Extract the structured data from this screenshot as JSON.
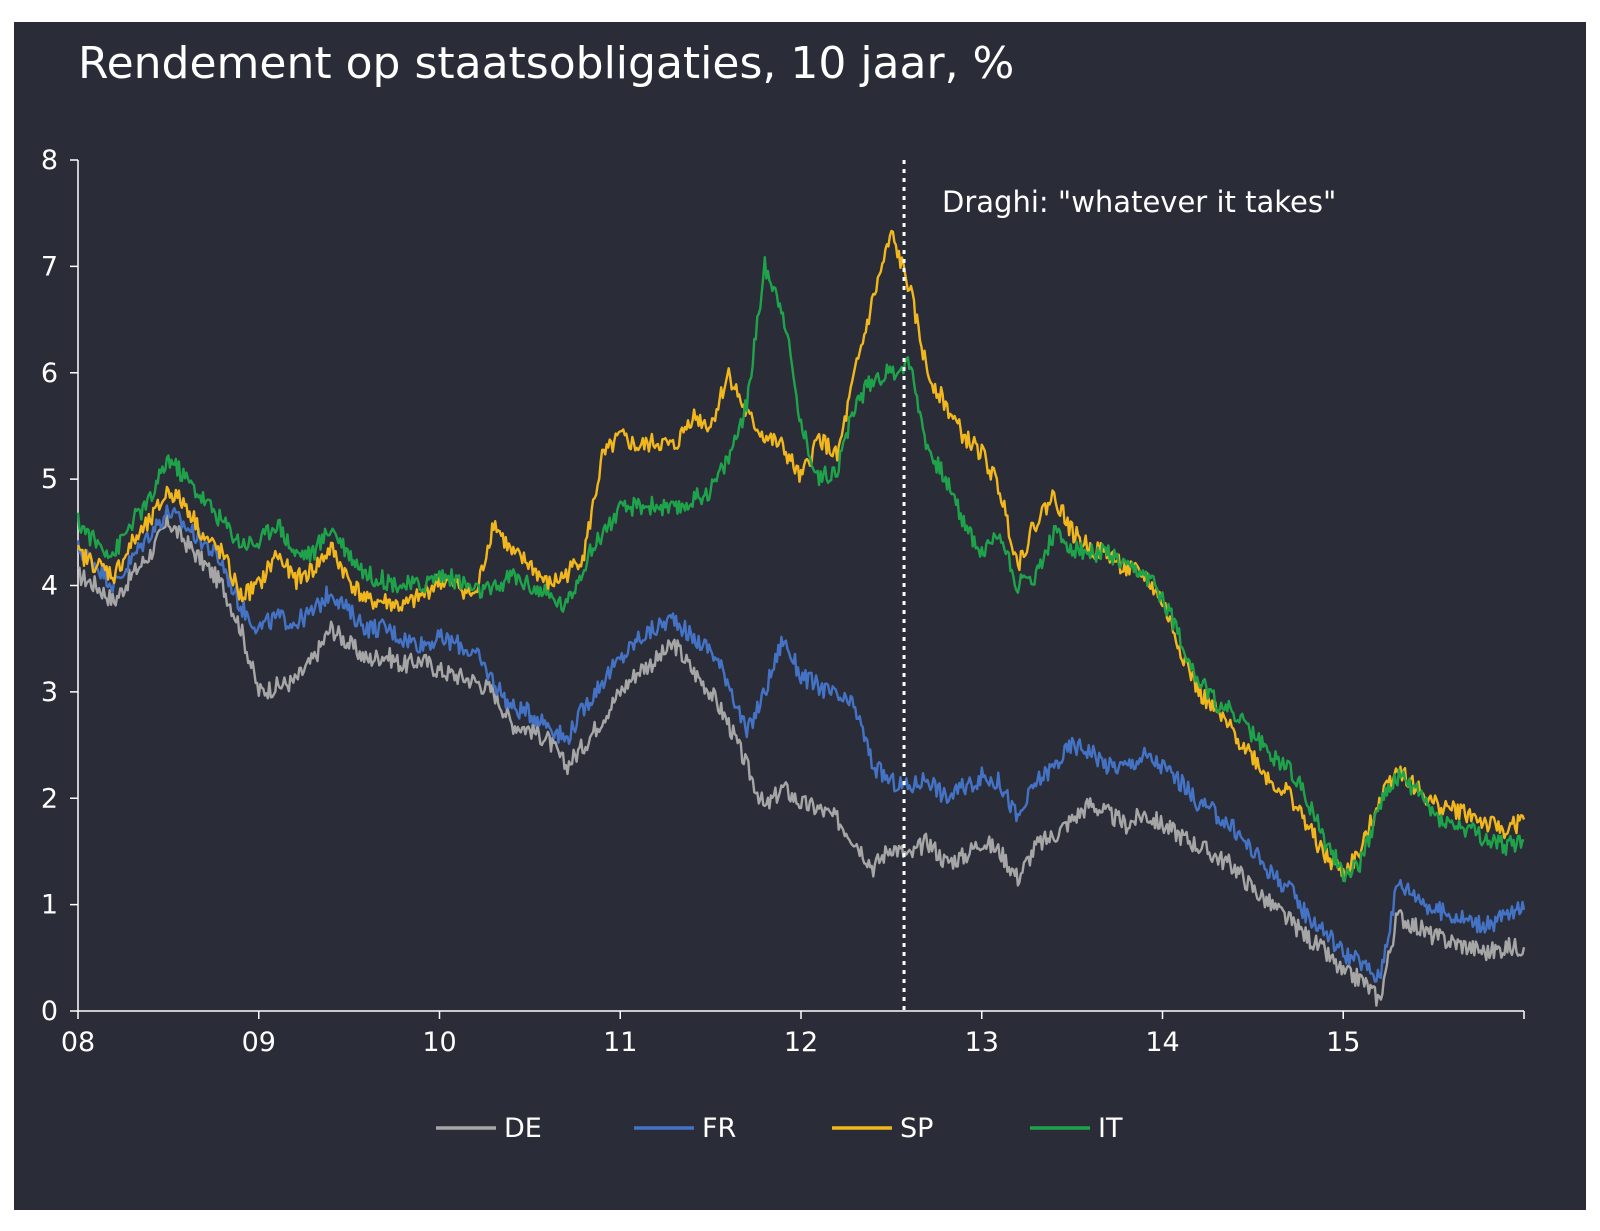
{
  "chart_data": {
    "type": "line",
    "title": "Rendement op staatsobligaties, 10 jaar, %",
    "xlabel": "",
    "ylabel": "",
    "xlim": [
      2008.0,
      2016.0
    ],
    "ylim": [
      0,
      8
    ],
    "y_ticks": [
      0,
      1,
      2,
      3,
      4,
      5,
      6,
      7,
      8
    ],
    "x_ticks": [
      {
        "value": 2008,
        "label": "08"
      },
      {
        "value": 2009,
        "label": "09"
      },
      {
        "value": 2010,
        "label": "10"
      },
      {
        "value": 2011,
        "label": "11"
      },
      {
        "value": 2012,
        "label": "12"
      },
      {
        "value": 2013,
        "label": "13"
      },
      {
        "value": 2014,
        "label": "14"
      },
      {
        "value": 2015,
        "label": "15"
      }
    ],
    "grid": false,
    "legend_position": "bottom",
    "annotation": {
      "text": "Draghi: \"whatever it takes\"",
      "x": 2012.57
    },
    "x": [
      2008.0,
      2008.1,
      2008.2,
      2008.3,
      2008.4,
      2008.5,
      2008.6,
      2008.7,
      2008.8,
      2008.9,
      2009.0,
      2009.1,
      2009.2,
      2009.3,
      2009.4,
      2009.5,
      2009.6,
      2009.7,
      2009.8,
      2009.9,
      2010.0,
      2010.1,
      2010.2,
      2010.3,
      2010.4,
      2010.5,
      2010.6,
      2010.7,
      2010.8,
      2010.9,
      2011.0,
      2011.1,
      2011.2,
      2011.3,
      2011.4,
      2011.5,
      2011.6,
      2011.7,
      2011.8,
      2011.9,
      2012.0,
      2012.1,
      2012.2,
      2012.3,
      2012.4,
      2012.5,
      2012.6,
      2012.7,
      2012.8,
      2012.9,
      2013.0,
      2013.1,
      2013.2,
      2013.3,
      2013.4,
      2013.5,
      2013.6,
      2013.7,
      2013.8,
      2013.9,
      2014.0,
      2014.1,
      2014.2,
      2014.3,
      2014.4,
      2014.5,
      2014.6,
      2014.7,
      2014.8,
      2014.9,
      2015.0,
      2015.1,
      2015.2,
      2015.3,
      2015.4,
      2015.5,
      2015.6,
      2015.7,
      2015.8,
      2015.9,
      2016.0
    ],
    "series": [
      {
        "name": "DE",
        "color": "#a6a6a6",
        "values": [
          4.1,
          4.0,
          3.85,
          4.1,
          4.3,
          4.6,
          4.4,
          4.2,
          4.0,
          3.6,
          3.0,
          3.05,
          3.1,
          3.3,
          3.6,
          3.45,
          3.3,
          3.35,
          3.25,
          3.3,
          3.2,
          3.15,
          3.1,
          3.0,
          2.7,
          2.65,
          2.55,
          2.3,
          2.5,
          2.75,
          3.0,
          3.2,
          3.3,
          3.45,
          3.2,
          3.0,
          2.7,
          2.3,
          1.9,
          2.1,
          1.95,
          1.9,
          1.8,
          1.6,
          1.35,
          1.55,
          1.45,
          1.6,
          1.4,
          1.45,
          1.6,
          1.5,
          1.25,
          1.55,
          1.65,
          1.8,
          1.95,
          1.85,
          1.75,
          1.85,
          1.75,
          1.65,
          1.55,
          1.45,
          1.35,
          1.15,
          1.0,
          0.85,
          0.7,
          0.55,
          0.35,
          0.3,
          0.1,
          0.9,
          0.8,
          0.7,
          0.65,
          0.6,
          0.55,
          0.6,
          0.6
        ]
      },
      {
        "name": "FR",
        "color": "#4472c4",
        "values": [
          4.35,
          4.2,
          4.0,
          4.25,
          4.5,
          4.7,
          4.55,
          4.4,
          4.2,
          3.8,
          3.6,
          3.7,
          3.65,
          3.75,
          3.95,
          3.75,
          3.6,
          3.6,
          3.5,
          3.45,
          3.5,
          3.45,
          3.35,
          3.1,
          2.85,
          2.8,
          2.7,
          2.55,
          2.85,
          3.1,
          3.3,
          3.5,
          3.6,
          3.7,
          3.5,
          3.4,
          3.1,
          2.6,
          3.0,
          3.5,
          3.15,
          3.05,
          2.95,
          2.85,
          2.3,
          2.15,
          2.1,
          2.2,
          2.0,
          2.1,
          2.2,
          2.15,
          1.8,
          2.15,
          2.3,
          2.5,
          2.45,
          2.3,
          2.3,
          2.4,
          2.3,
          2.15,
          1.95,
          1.85,
          1.7,
          1.5,
          1.3,
          1.15,
          0.9,
          0.75,
          0.55,
          0.45,
          0.3,
          1.2,
          1.1,
          0.95,
          0.9,
          0.85,
          0.8,
          0.9,
          0.95
        ]
      },
      {
        "name": "SP",
        "color": "#f2b71d",
        "values": [
          4.3,
          4.2,
          4.1,
          4.4,
          4.6,
          4.9,
          4.75,
          4.45,
          4.3,
          3.9,
          4.0,
          4.3,
          4.05,
          4.15,
          4.35,
          4.05,
          3.85,
          3.85,
          3.8,
          3.9,
          4.05,
          4.0,
          3.9,
          4.6,
          4.3,
          4.2,
          4.0,
          4.1,
          4.3,
          5.2,
          5.4,
          5.3,
          5.35,
          5.3,
          5.6,
          5.5,
          6.0,
          5.6,
          5.4,
          5.3,
          5.0,
          5.4,
          5.2,
          6.0,
          6.7,
          7.3,
          6.8,
          6.0,
          5.7,
          5.4,
          5.25,
          4.9,
          4.2,
          4.6,
          4.85,
          4.5,
          4.35,
          4.3,
          4.15,
          4.1,
          3.85,
          3.4,
          3.0,
          2.8,
          2.6,
          2.4,
          2.15,
          2.05,
          1.75,
          1.45,
          1.3,
          1.5,
          2.0,
          2.3,
          2.1,
          1.95,
          1.9,
          1.85,
          1.75,
          1.7,
          1.8
        ]
      },
      {
        "name": "IT",
        "color": "#1fa34a",
        "values": [
          4.6,
          4.4,
          4.3,
          4.6,
          4.8,
          5.2,
          5.0,
          4.8,
          4.6,
          4.4,
          4.4,
          4.6,
          4.3,
          4.3,
          4.55,
          4.3,
          4.1,
          4.05,
          4.0,
          4.0,
          4.1,
          4.05,
          3.95,
          3.95,
          4.1,
          4.0,
          3.9,
          3.8,
          4.2,
          4.5,
          4.7,
          4.75,
          4.75,
          4.7,
          4.8,
          4.9,
          5.2,
          5.7,
          7.0,
          6.6,
          5.5,
          5.0,
          5.1,
          5.7,
          5.95,
          6.0,
          6.1,
          5.3,
          5.0,
          4.6,
          4.3,
          4.5,
          4.0,
          4.1,
          4.5,
          4.35,
          4.3,
          4.3,
          4.15,
          4.1,
          3.9,
          3.5,
          3.1,
          2.9,
          2.8,
          2.6,
          2.4,
          2.3,
          2.0,
          1.6,
          1.3,
          1.4,
          1.95,
          2.2,
          2.1,
          1.85,
          1.75,
          1.7,
          1.6,
          1.55,
          1.6
        ]
      }
    ]
  }
}
